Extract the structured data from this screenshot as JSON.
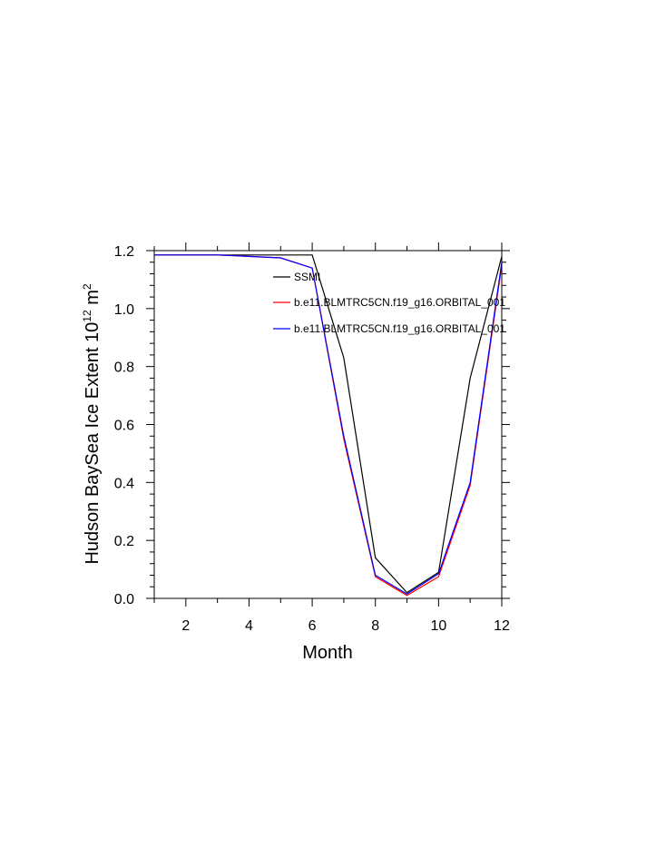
{
  "chart_data": {
    "type": "line",
    "title": "",
    "xlabel": "Month",
    "ylabel": "Hudson BaySea Ice Extent 10",
    "ylabel_sup": "12",
    "ylabel_unit": " m",
    "ylabel_unit_sup": "2",
    "xlim": [
      1,
      12
    ],
    "ylim": [
      0,
      1.2
    ],
    "xticks": [
      2,
      4,
      6,
      8,
      10,
      12
    ],
    "yticks": [
      "0.0",
      "0.2",
      "0.4",
      "0.6",
      "0.8",
      "1.0",
      "1.2"
    ],
    "grid": false,
    "legend_position": "top-right (inside plot)",
    "x": [
      1,
      2,
      3,
      4,
      5,
      6,
      7,
      8,
      9,
      10,
      11,
      12
    ],
    "series": [
      {
        "name": "SSMI",
        "color": "#000000",
        "values": [
          1.185,
          1.185,
          1.185,
          1.185,
          1.185,
          1.185,
          0.83,
          0.14,
          0.02,
          0.09,
          0.76,
          1.18
        ]
      },
      {
        "name": "b.e11.BLMTRC5CN.f19_g16.ORBITAL_001",
        "color": "#ff0000",
        "values": [
          1.185,
          1.185,
          1.185,
          1.18,
          1.175,
          1.14,
          0.55,
          0.075,
          0.01,
          0.075,
          0.39,
          1.15
        ]
      },
      {
        "name": "b.e11.BLMTRC5CN.f19_g16.ORBITAL_001",
        "color": "#0000ff",
        "values": [
          1.185,
          1.185,
          1.185,
          1.18,
          1.175,
          1.14,
          0.56,
          0.08,
          0.015,
          0.085,
          0.4,
          1.16
        ]
      }
    ]
  }
}
